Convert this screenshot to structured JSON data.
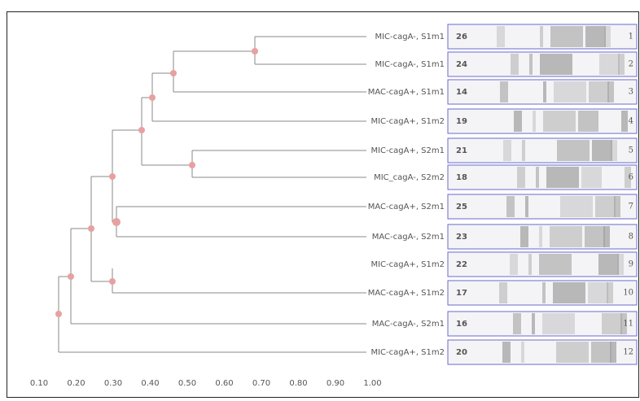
{
  "leaves": [
    {
      "label": "MIC-cagA-, S1m1",
      "number": "26",
      "lane": "1"
    },
    {
      "label": "MIC-cagA-, S1m1",
      "number": "24",
      "lane": "2"
    },
    {
      "label": "MAC-cagA+, S1m1",
      "number": "14",
      "lane": "3"
    },
    {
      "label": "MIC-cagA+, S1m2",
      "number": "19",
      "lane": "4"
    },
    {
      "label": "MIC-cagA+, S2m1",
      "number": "21",
      "lane": "5"
    },
    {
      "label": "MIC_cagA-, S2m2",
      "number": "18",
      "lane": "6"
    },
    {
      "label": "MAC-cagA+, S2m1",
      "number": "25",
      "lane": "7"
    },
    {
      "label": "MAC-cagA-, S2m1",
      "number": "23",
      "lane": "8"
    },
    {
      "label": "MIC-cagA+, S1m2",
      "number": "22",
      "lane": "9"
    },
    {
      "label": "MAC-cagA+, S1m2",
      "number": "17",
      "lane": "10"
    },
    {
      "label": "MAC-cagA-, S2m1",
      "number": "16",
      "lane": "11"
    },
    {
      "label": "MIC-cagA+, S1m2",
      "number": "20",
      "lane": "12"
    }
  ],
  "axis": {
    "ticks": [
      "0.10",
      "0.20",
      "0.30",
      "0.40",
      "0.50",
      "0.60",
      "0.70",
      "0.80",
      "0.90",
      "1.00"
    ]
  }
}
